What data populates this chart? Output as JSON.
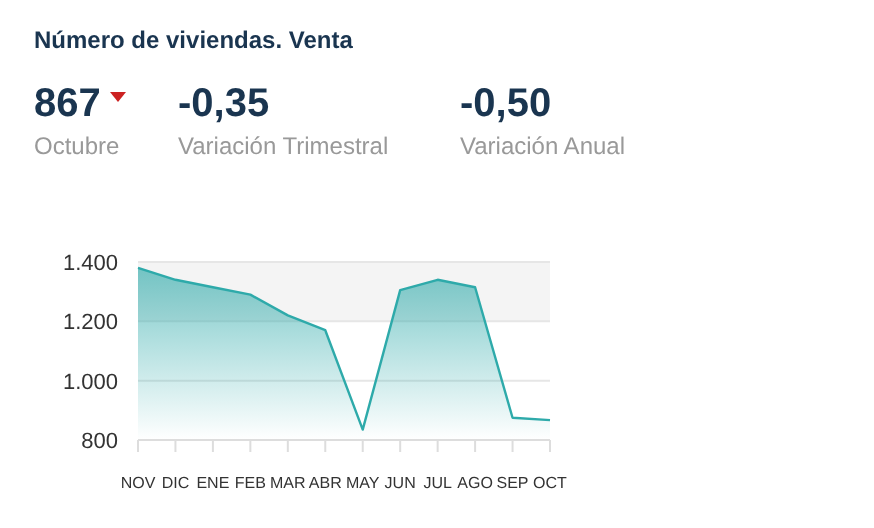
{
  "chart_data": {
    "type": "area",
    "title": "Número de viviendas. Venta",
    "annotations": [
      "867",
      "Octubre",
      "-0,35",
      "Variación Trimestral",
      "-0,50",
      "Variación Anual"
    ],
    "categories": [
      "NOV",
      "DIC",
      "ENE",
      "FEB",
      "MAR",
      "ABR",
      "MAY",
      "JUN",
      "JUL",
      "AGO",
      "SEP",
      "OCT"
    ],
    "series": [
      {
        "color": "#2eaaaa",
        "values": [
          1380,
          1340,
          1315,
          1290,
          1220,
          1170,
          835,
          1305,
          1340,
          1315,
          875,
          867
        ]
      }
    ],
    "ylim": [
      800,
      1400
    ],
    "yticks": [
      {
        "value": 800,
        "label": "800"
      },
      {
        "value": 1000,
        "label": "1.000"
      },
      {
        "value": 1200,
        "label": "1.200"
      },
      {
        "value": 1400,
        "label": "1.400"
      }
    ],
    "grid": "y",
    "bands": [
      {
        "axis": "y",
        "from": 1200,
        "to": 1400,
        "color": "#f4f4f4"
      }
    ]
  }
}
